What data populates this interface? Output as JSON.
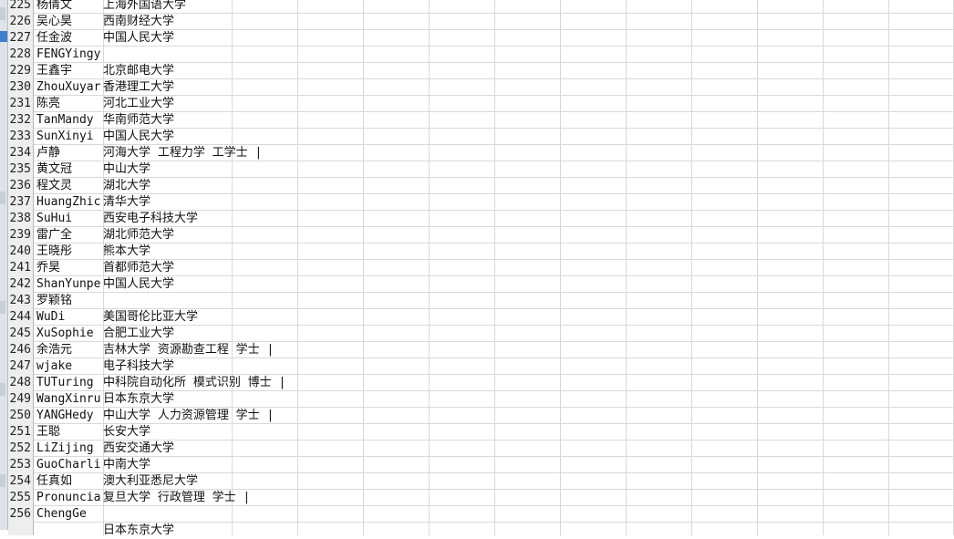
{
  "rows": [
    {
      "num": "225",
      "a": "杨倩文",
      "b": "上海外国语大学"
    },
    {
      "num": "226",
      "a": "吴心昊",
      "b": "西南财经大学"
    },
    {
      "num": "227",
      "a": "任金波",
      "b": "中国人民大学"
    },
    {
      "num": "228",
      "a": "FENGYingy",
      "b": ""
    },
    {
      "num": "229",
      "a": "王鑫宇",
      "b": "北京邮电大学"
    },
    {
      "num": "230",
      "a": "ZhouXuyar",
      "b": "香港理工大学"
    },
    {
      "num": "231",
      "a": "陈亮",
      "b": "河北工业大学"
    },
    {
      "num": "232",
      "a": "TanMandy",
      "b": "华南师范大学"
    },
    {
      "num": "233",
      "a": "SunXinyi",
      "b": "中国人民大学"
    },
    {
      "num": "234",
      "a": "卢静",
      "b": "河海大学 工程力学 工学士 |"
    },
    {
      "num": "235",
      "a": "黄文冠",
      "b": "中山大学"
    },
    {
      "num": "236",
      "a": "程文灵",
      "b": "湖北大学"
    },
    {
      "num": "237",
      "a": "HuangZhic",
      "b": "清华大学"
    },
    {
      "num": "238",
      "a": "SuHui",
      "b": "西安电子科技大学"
    },
    {
      "num": "239",
      "a": "雷广全",
      "b": "湖北师范大学"
    },
    {
      "num": "240",
      "a": "王晓彤",
      "b": "熊本大学"
    },
    {
      "num": "241",
      "a": "乔昊",
      "b": "首都师范大学"
    },
    {
      "num": "242",
      "a": "ShanYunpe",
      "b": "中国人民大学"
    },
    {
      "num": "243",
      "a": "罗颖铭",
      "b": ""
    },
    {
      "num": "244",
      "a": "WuDi",
      "b": "美国哥伦比亚大学"
    },
    {
      "num": "245",
      "a": "XuSophie",
      "b": "合肥工业大学"
    },
    {
      "num": "246",
      "a": "余浩元",
      "b": "吉林大学 资源勘查工程 学士 |"
    },
    {
      "num": "247",
      "a": "wjake",
      "b": "电子科技大学"
    },
    {
      "num": "248",
      "a": "TUTuring",
      "b": "中科院自动化所 模式识别 博士 |"
    },
    {
      "num": "249",
      "a": "WangXinru",
      "b": "日本东京大学"
    },
    {
      "num": "250",
      "a": "YANGHedy",
      "b": "中山大学 人力资源管理 学士 |"
    },
    {
      "num": "251",
      "a": "王聪",
      "b": "长安大学"
    },
    {
      "num": "252",
      "a": "LiZijing",
      "b": "西安交通大学"
    },
    {
      "num": "253",
      "a": "GuoCharli",
      "b": "中南大学"
    },
    {
      "num": "254",
      "a": "任真如",
      "b": "澳大利亚悉尼大学"
    },
    {
      "num": "255",
      "a": "Pronuncia",
      "b": "复旦大学 行政管理 学士 |"
    },
    {
      "num": "256",
      "a": "ChengGe",
      "b": ""
    },
    {
      "num": "",
      "a": "",
      "b": "日本东京大学"
    }
  ]
}
